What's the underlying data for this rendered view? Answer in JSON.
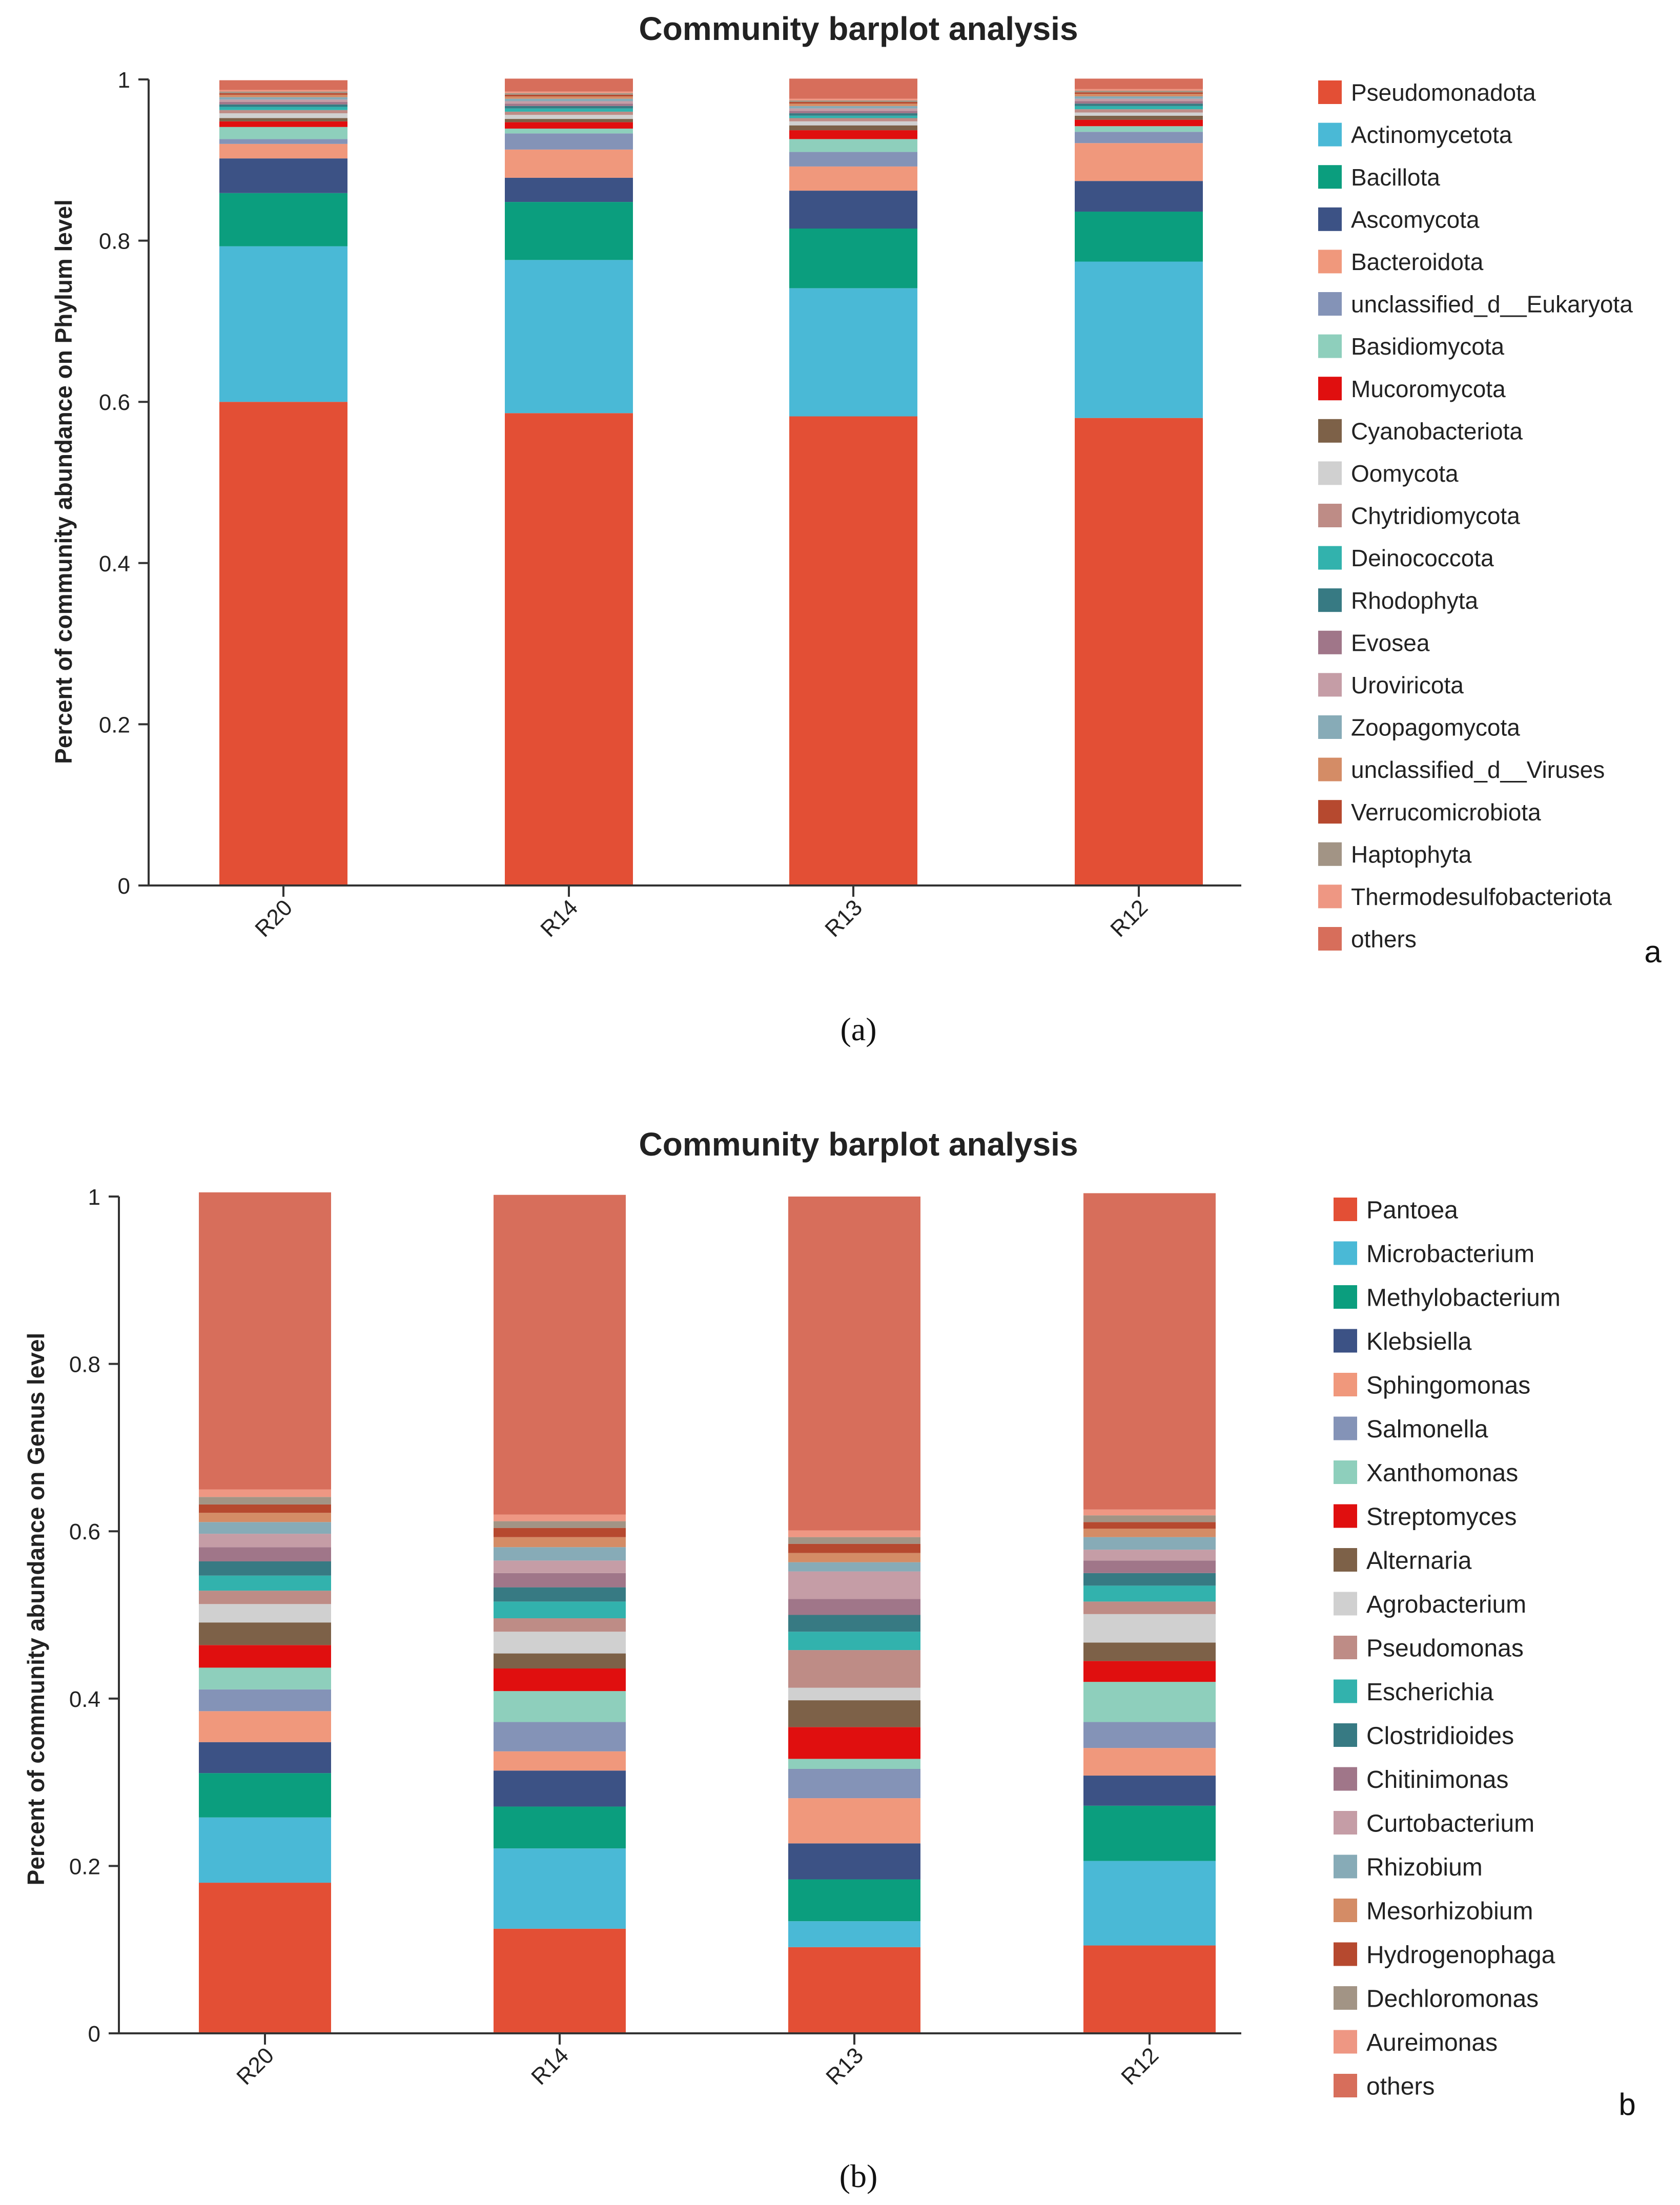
{
  "colors": {
    "Pseudomonadota": "#E34F35",
    "Actinomycetota": "#4AB9D6",
    "Bacillota": "#0B9E7E",
    "Ascomycota": "#3C5285",
    "Bacteroidota": "#F0987C",
    "unclassified_d__Eukaryota": "#8493B7",
    "Basidiomycota": "#8ECFBC",
    "Mucoromycota": "#E00F0F",
    "Cyanobacteriota": "#7D6148",
    "Oomycota": "#D0D0D0",
    "Chytridiomycota": "#BE8C86",
    "Deinococcota": "#32B2AD",
    "Rhodophyta": "#377A83",
    "Evosea": "#A07689",
    "Uroviricota": "#C59DA6",
    "Zoopagomycota": "#87ABB7",
    "unclassified_d__Viruses": "#D48C66",
    "Verrucomicrobiota": "#B6492F",
    "Haptophyta": "#A29485",
    "Thermodesulfobacteriota": "#EE9783",
    "others": "#D76E5B",
    "Pantoea": "#E34F35",
    "Microbacterium": "#4AB9D6",
    "Methylobacterium": "#0B9E7E",
    "Klebsiella": "#3C5285",
    "Sphingomonas": "#F0987C",
    "Salmonella": "#8493B7",
    "Xanthomonas": "#8ECFBC",
    "Streptomyces": "#E00F0F",
    "Alternaria": "#7D6148",
    "Agrobacterium": "#D0D0D0",
    "Pseudomonas": "#BE8C86",
    "Escherichia": "#32B2AD",
    "Clostridioides": "#377A83",
    "Chitinimonas": "#A07689",
    "Curtobacterium": "#C59DA6",
    "Rhizobium": "#87ABB7",
    "Mesorhizobium": "#D48C66",
    "Hydrogenophaga": "#B6492F",
    "Dechloromonas": "#A29485",
    "Aureimonas": "#EE9783"
  },
  "chart_data": [
    {
      "type": "bar",
      "stacked": true,
      "title": "Community barplot analysis",
      "ylabel": "Percent of community abundance on Phylum level",
      "xlabel": "",
      "ylim": [
        0,
        1
      ],
      "yticks": [
        "0",
        "0.2",
        "0.4",
        "0.6",
        "0.8",
        "1"
      ],
      "categories": [
        "R20",
        "R14",
        "R13",
        "R12"
      ],
      "legend_position": "right",
      "panel_letter": "a",
      "caption": "(a)",
      "series": [
        {
          "name": "Pseudomonadota",
          "values": [
            0.6,
            0.586,
            0.582,
            0.58
          ]
        },
        {
          "name": "Actinomycetota",
          "values": [
            0.193,
            0.19,
            0.159,
            0.194
          ]
        },
        {
          "name": "Bacillota",
          "values": [
            0.066,
            0.072,
            0.074,
            0.062
          ]
        },
        {
          "name": "Ascomycota",
          "values": [
            0.043,
            0.03,
            0.047,
            0.038
          ]
        },
        {
          "name": "Bacteroidota",
          "values": [
            0.018,
            0.035,
            0.03,
            0.047
          ]
        },
        {
          "name": "unclassified_d__Eukaryota",
          "values": [
            0.006,
            0.02,
            0.018,
            0.014
          ]
        },
        {
          "name": "Basidiomycota",
          "values": [
            0.015,
            0.006,
            0.016,
            0.007
          ]
        },
        {
          "name": "Mucoromycota",
          "values": [
            0.007,
            0.008,
            0.011,
            0.008
          ]
        },
        {
          "name": "Cyanobacteriota",
          "values": [
            0.004,
            0.004,
            0.006,
            0.005
          ]
        },
        {
          "name": "Oomycota",
          "values": [
            0.006,
            0.005,
            0.005,
            0.004
          ]
        },
        {
          "name": "Chytridiomycota",
          "values": [
            0.004,
            0.004,
            0.004,
            0.004
          ]
        },
        {
          "name": "Deinococcota",
          "values": [
            0.004,
            0.004,
            0.003,
            0.004
          ]
        },
        {
          "name": "Rhodophyta",
          "values": [
            0.003,
            0.003,
            0.003,
            0.003
          ]
        },
        {
          "name": "Evosea",
          "values": [
            0.003,
            0.003,
            0.003,
            0.003
          ]
        },
        {
          "name": "Uroviricota",
          "values": [
            0.003,
            0.003,
            0.003,
            0.003
          ]
        },
        {
          "name": "Zoopagomycota",
          "values": [
            0.003,
            0.003,
            0.003,
            0.003
          ]
        },
        {
          "name": "unclassified_d__Viruses",
          "values": [
            0.003,
            0.003,
            0.003,
            0.003
          ]
        },
        {
          "name": "Verrucomicrobiota",
          "values": [
            0.002,
            0.002,
            0.002,
            0.002
          ]
        },
        {
          "name": "Haptophyta",
          "values": [
            0.002,
            0.002,
            0.002,
            0.002
          ]
        },
        {
          "name": "Thermodesulfobacteriota",
          "values": [
            0.002,
            0.002,
            0.002,
            0.002
          ]
        },
        {
          "name": "others",
          "values": [
            0.012,
            0.016,
            0.025,
            0.013
          ]
        }
      ]
    },
    {
      "type": "bar",
      "stacked": true,
      "title": "Community barplot analysis",
      "ylabel": "Percent of community abundance on Genus level",
      "xlabel": "",
      "ylim": [
        0,
        1
      ],
      "yticks": [
        "0",
        "0.2",
        "0.4",
        "0.6",
        "0.8",
        "1"
      ],
      "categories": [
        "R20",
        "R14",
        "R13",
        "R12"
      ],
      "legend_position": "right",
      "panel_letter": "b",
      "caption": "(b)",
      "series": [
        {
          "name": "Pantoea",
          "values": [
            0.18,
            0.125,
            0.103,
            0.105
          ]
        },
        {
          "name": "Microbacterium",
          "values": [
            0.078,
            0.096,
            0.031,
            0.101
          ]
        },
        {
          "name": "Methylobacterium",
          "values": [
            0.053,
            0.05,
            0.05,
            0.066
          ]
        },
        {
          "name": "Klebsiella",
          "values": [
            0.037,
            0.043,
            0.043,
            0.036
          ]
        },
        {
          "name": "Sphingomonas",
          "values": [
            0.037,
            0.023,
            0.054,
            0.033
          ]
        },
        {
          "name": "Salmonella",
          "values": [
            0.026,
            0.035,
            0.035,
            0.031
          ]
        },
        {
          "name": "Xanthomonas",
          "values": [
            0.026,
            0.037,
            0.012,
            0.048
          ]
        },
        {
          "name": "Streptomyces",
          "values": [
            0.027,
            0.027,
            0.038,
            0.025
          ]
        },
        {
          "name": "Alternaria",
          "values": [
            0.027,
            0.018,
            0.032,
            0.022
          ]
        },
        {
          "name": "Agrobacterium",
          "values": [
            0.022,
            0.026,
            0.015,
            0.034
          ]
        },
        {
          "name": "Pseudomonas",
          "values": [
            0.016,
            0.016,
            0.045,
            0.015
          ]
        },
        {
          "name": "Escherichia",
          "values": [
            0.018,
            0.02,
            0.022,
            0.019
          ]
        },
        {
          "name": "Clostridioides",
          "values": [
            0.017,
            0.017,
            0.02,
            0.015
          ]
        },
        {
          "name": "Chitinimonas",
          "values": [
            0.017,
            0.017,
            0.019,
            0.015
          ]
        },
        {
          "name": "Curtobacterium",
          "values": [
            0.016,
            0.015,
            0.033,
            0.013
          ]
        },
        {
          "name": "Rhizobium",
          "values": [
            0.014,
            0.016,
            0.011,
            0.015
          ]
        },
        {
          "name": "Mesorhizobium",
          "values": [
            0.011,
            0.012,
            0.011,
            0.01
          ]
        },
        {
          "name": "Hydrogenophaga",
          "values": [
            0.01,
            0.011,
            0.011,
            0.008
          ]
        },
        {
          "name": "Dechloromonas",
          "values": [
            0.009,
            0.008,
            0.008,
            0.008
          ]
        },
        {
          "name": "Aureimonas",
          "values": [
            0.009,
            0.008,
            0.008,
            0.007
          ]
        },
        {
          "name": "others",
          "values": [
            0.355,
            0.382,
            0.399,
            0.378
          ]
        }
      ]
    }
  ]
}
